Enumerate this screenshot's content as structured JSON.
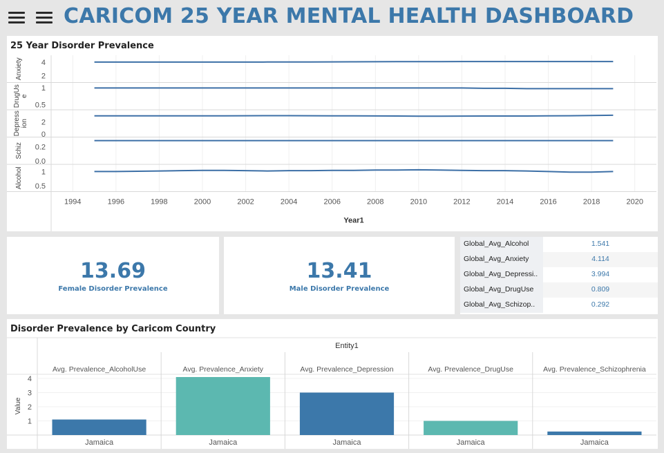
{
  "header": {
    "title": "CARICOM 25 YEAR MENTAL HEALTH DASHBOARD"
  },
  "colors": {
    "accent": "#3c78aa",
    "teal": "#5cb8b0",
    "line": "#3c6fa6"
  },
  "icons": [
    "menu-icon",
    "menu-icon"
  ],
  "kpis": {
    "female": {
      "value": "13.69",
      "label": "Female Disorder Prevalence"
    },
    "male": {
      "value": "13.41",
      "label": "Male Disorder Prevalence"
    }
  },
  "global_table": [
    {
      "name": "Global_Avg_Alcohol",
      "value": "1.541"
    },
    {
      "name": "Global_Avg_Anxiety",
      "value": "4.114"
    },
    {
      "name": "Global_Avg_Depressi..",
      "value": "3.994"
    },
    {
      "name": "Global_Avg_DrugUse",
      "value": "0.809"
    },
    {
      "name": "Global_Avg_Schizop..",
      "value": "0.292"
    }
  ],
  "chart_data": [
    {
      "type": "line",
      "title": "25 Year Disorder Prevalence",
      "xlabel": "Year1",
      "xlim": [
        1993,
        2021
      ],
      "xticks": [
        1994,
        1996,
        1998,
        2000,
        2002,
        2004,
        2006,
        2008,
        2010,
        2012,
        2014,
        2016,
        2018,
        2020
      ],
      "x": [
        1995,
        1996,
        1997,
        1998,
        1999,
        2000,
        2001,
        2002,
        2003,
        2004,
        2005,
        2006,
        2007,
        2008,
        2009,
        2010,
        2011,
        2012,
        2013,
        2014,
        2015,
        2016,
        2017,
        2018,
        2019
      ],
      "rows": [
        {
          "label": "Anxiety",
          "ylim": [
            1,
            5
          ],
          "ticks": [
            {
              "v": 4,
              "t": "4"
            },
            {
              "v": 2,
              "t": "2"
            }
          ],
          "values": [
            4.0,
            4.0,
            4.0,
            4.0,
            4.0,
            4.0,
            4.0,
            4.0,
            4.01,
            4.01,
            4.02,
            4.03,
            4.04,
            4.05,
            4.06,
            4.07,
            4.07,
            4.08,
            4.08,
            4.08,
            4.08,
            4.08,
            4.08,
            4.08,
            4.08
          ]
        },
        {
          "label": "DrugUs\ne",
          "ylim": [
            0.35,
            1.15
          ],
          "ticks": [
            {
              "v": 1,
              "t": "1"
            },
            {
              "v": 0.5,
              "t": "0.5"
            }
          ],
          "values": [
            0.99,
            0.99,
            0.99,
            0.99,
            0.99,
            0.99,
            0.99,
            0.99,
            0.99,
            0.99,
            0.99,
            0.99,
            0.99,
            0.99,
            0.99,
            0.99,
            0.99,
            0.99,
            0.98,
            0.98,
            0.97,
            0.97,
            0.97,
            0.97,
            0.97
          ]
        },
        {
          "label": "Depress\nion",
          "ylim": [
            -0.5,
            4.0
          ],
          "ticks": [
            {
              "v": 2,
              "t": "2"
            },
            {
              "v": 0,
              "t": "0"
            }
          ],
          "values": [
            3.0,
            3.0,
            3.0,
            3.0,
            3.0,
            3.0,
            3.01,
            3.02,
            3.03,
            3.03,
            3.02,
            3.01,
            3.0,
            2.99,
            2.97,
            2.95,
            2.95,
            2.96,
            2.97,
            2.97,
            2.98,
            3.0,
            3.02,
            3.05,
            3.1
          ]
        },
        {
          "label": "Schiz",
          "ylim": [
            -0.05,
            0.34
          ],
          "ticks": [
            {
              "v": 0.2,
              "t": "0.2"
            },
            {
              "v": 0.0,
              "t": "0.0"
            }
          ],
          "values": [
            0.29,
            0.29,
            0.29,
            0.29,
            0.29,
            0.29,
            0.29,
            0.29,
            0.29,
            0.29,
            0.29,
            0.29,
            0.29,
            0.29,
            0.29,
            0.29,
            0.29,
            0.29,
            0.29,
            0.29,
            0.29,
            0.29,
            0.29,
            0.29,
            0.29
          ]
        },
        {
          "label": "Alcohol",
          "ylim": [
            0.3,
            1.25
          ],
          "ticks": [
            {
              "v": 1,
              "t": "1"
            },
            {
              "v": 0.5,
              "t": "0.5"
            }
          ],
          "values": [
            1.0,
            1.0,
            1.01,
            1.02,
            1.03,
            1.04,
            1.04,
            1.03,
            1.02,
            1.03,
            1.03,
            1.04,
            1.04,
            1.05,
            1.05,
            1.06,
            1.05,
            1.04,
            1.03,
            1.03,
            1.02,
            1.0,
            0.98,
            0.98,
            1.0
          ]
        }
      ]
    },
    {
      "type": "bar",
      "title": "Disorder Prevalence by Caricom Country",
      "facet_label": "Entity1",
      "ylabel": "Value",
      "ylim": [
        0,
        4.1
      ],
      "yticks": [
        1,
        2,
        3,
        4
      ],
      "series": [
        {
          "name": "Avg. Prevalence_AlcoholUse",
          "category": "Jamaica",
          "value": 1.1,
          "color": "#3c78aa"
        },
        {
          "name": "Avg. Prevalence_Anxiety",
          "category": "Jamaica",
          "value": 4.1,
          "color": "#5cb8b0"
        },
        {
          "name": "Avg. Prevalence_Depression",
          "category": "Jamaica",
          "value": 3.0,
          "color": "#3c78aa"
        },
        {
          "name": "Avg. Prevalence_DrugUse",
          "category": "Jamaica",
          "value": 1.0,
          "color": "#5cb8b0"
        },
        {
          "name": "Avg. Prevalence_Schizophrenia",
          "category": "Jamaica",
          "value": 0.25,
          "color": "#3c78aa"
        }
      ]
    }
  ]
}
